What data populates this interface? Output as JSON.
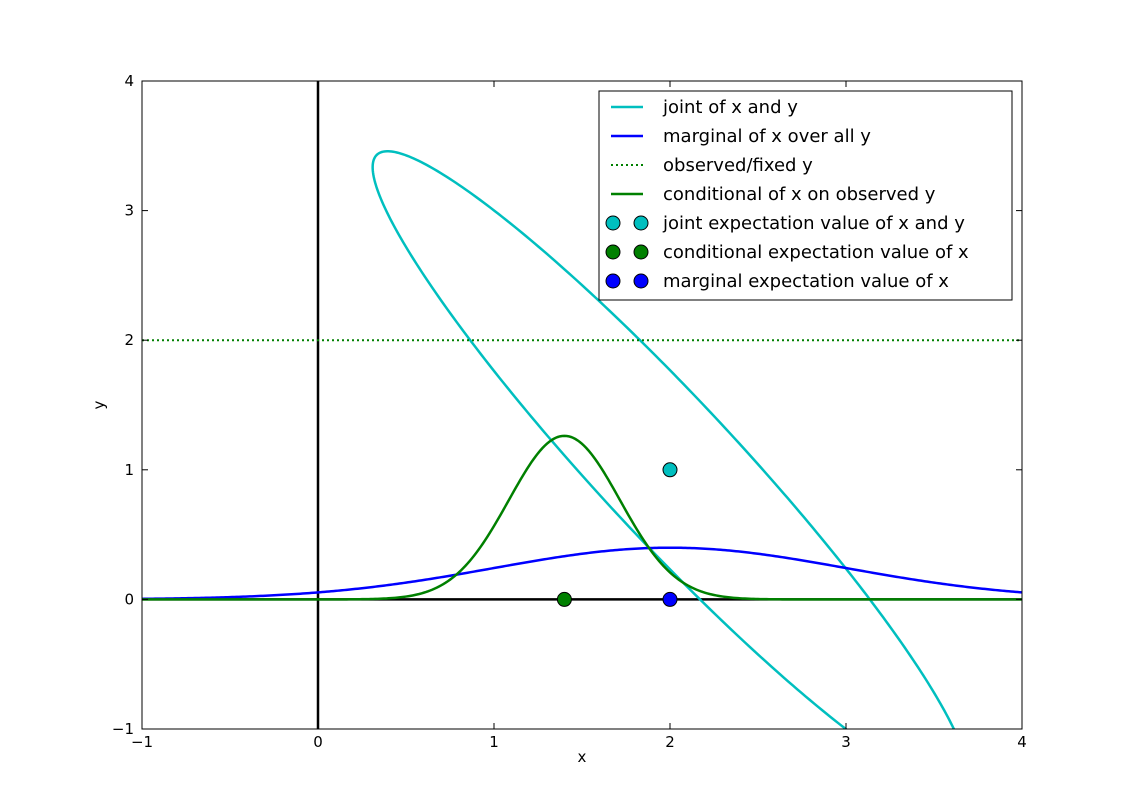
{
  "chart_data": {
    "type": "line",
    "title": "",
    "xlabel": "x",
    "ylabel": "y",
    "xlim": [
      -1,
      4
    ],
    "ylim": [
      -1,
      4
    ],
    "xticks": [
      -1,
      0,
      1,
      2,
      3,
      4
    ],
    "yticks": [
      -1,
      0,
      1,
      2,
      3,
      4
    ],
    "xtick_labels": [
      "−1",
      "0",
      "1",
      "2",
      "3",
      "4"
    ],
    "ytick_labels": [
      "−1",
      "0",
      "1",
      "2",
      "3",
      "4"
    ],
    "grid": false,
    "legend_position": "top-right",
    "colors": {
      "joint": "#00bfbf",
      "marginal": "#0000ff",
      "observed": "#008000",
      "conditional": "#008000"
    },
    "series": [
      {
        "name": "joint of x and y",
        "kind": "ellipse",
        "style": "solid",
        "color": "#00bfbf",
        "ellipse": {
          "center": [
            2,
            1
          ],
          "semi_axes": [
            2.95,
            0.44
          ],
          "angle_deg": -56
        }
      },
      {
        "name": "marginal of x over all y",
        "kind": "gaussian",
        "style": "solid",
        "color": "#0000ff",
        "gaussian": {
          "mean": 2.0,
          "sigma": 1.0,
          "peak": 0.399
        }
      },
      {
        "name": "observed/fixed y",
        "kind": "hline",
        "style": "dotted",
        "color": "#008000",
        "y": 2
      },
      {
        "name": "conditional of x on observed y",
        "kind": "gaussian",
        "style": "solid",
        "color": "#008000",
        "gaussian": {
          "mean": 1.4,
          "sigma": 0.316,
          "peak": 1.262
        }
      },
      {
        "name": "joint expectation value of x and y",
        "kind": "point",
        "color": "#00bfbf",
        "points": [
          [
            2,
            1
          ]
        ]
      },
      {
        "name": "conditional expectation value of x",
        "kind": "point",
        "color": "#008000",
        "points": [
          [
            1.4,
            0
          ]
        ]
      },
      {
        "name": "marginal expectation value of x",
        "kind": "point",
        "color": "#0000ff",
        "points": [
          [
            2,
            0
          ]
        ]
      }
    ],
    "reference_lines": [
      {
        "kind": "vline",
        "x": 0,
        "color": "#000000"
      },
      {
        "kind": "hline",
        "y": 0,
        "color": "#000000",
        "x_range": [
          -1,
          4
        ]
      }
    ]
  }
}
